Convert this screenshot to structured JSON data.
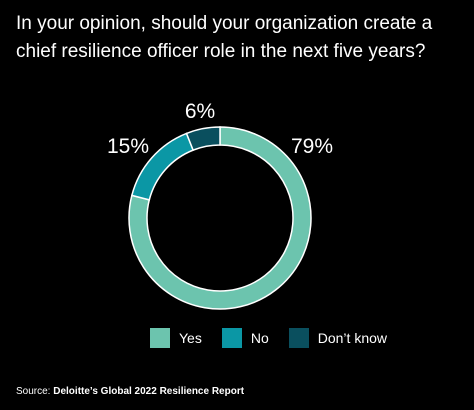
{
  "chart_data": {
    "type": "pie",
    "variant": "donut",
    "title": "In your opinion, should your organization create a chief resilience officer role in the next five years?",
    "categories": [
      "Yes",
      "No",
      "Don’t know"
    ],
    "values": [
      79,
      15,
      6
    ],
    "value_labels": [
      "79%",
      "15%",
      "6%"
    ],
    "colors": [
      "#6cc4ae",
      "#0b97a5",
      "#0a4f5e"
    ],
    "legend_placement": "bottom"
  },
  "source": {
    "prefix": "Source: ",
    "name": "Deloitte’s Global 2022 Resilience Report"
  },
  "background": "#000000",
  "segment_stroke": "#ffffff"
}
